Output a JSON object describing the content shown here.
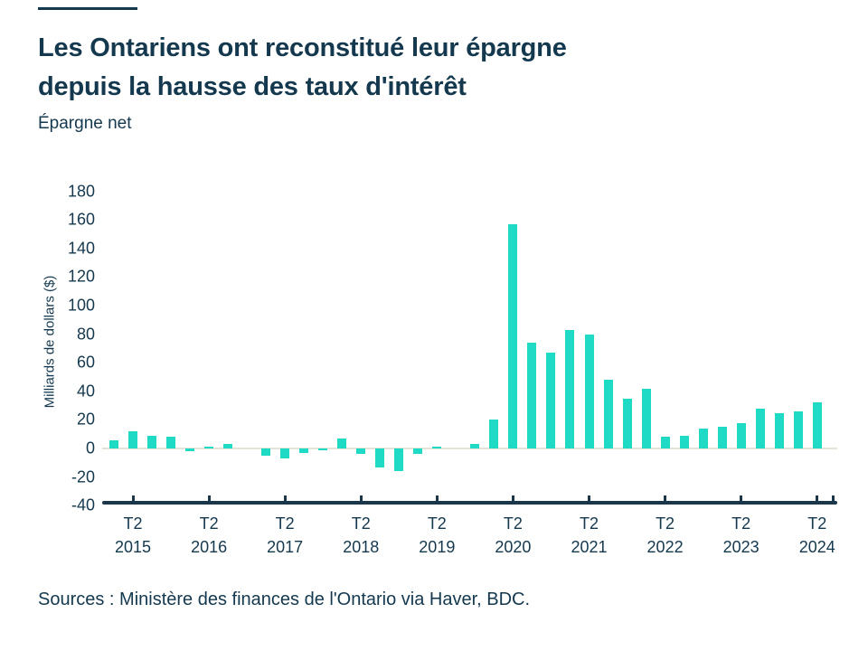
{
  "colors": {
    "text": "#14384E",
    "bar": "#1FDBC6",
    "zero_line": "#E6E1D8",
    "axis": "#1B3648"
  },
  "header": {
    "title_line1": "Les Ontariens ont reconstitué leur épargne",
    "title_line2": "depuis la hausse des taux d'intérêt",
    "subtitle": "Épargne net"
  },
  "source": "Sources : Ministère des finances de l'Ontario via Haver, BDC.",
  "chart_data": {
    "type": "bar",
    "title": "Épargne net",
    "xlabel": "",
    "ylabel": "Milliards de dollars ($)",
    "ylim": [
      -40,
      180
    ],
    "yticks": [
      180,
      160,
      140,
      120,
      100,
      80,
      60,
      40,
      20,
      0,
      -20,
      -40
    ],
    "grid": false,
    "legend": false,
    "bar_color": "#1FDBC6",
    "categories": [
      "T1 2015",
      "T2 2015",
      "T3 2015",
      "T4 2015",
      "T1 2016",
      "T2 2016",
      "T3 2016",
      "T4 2016",
      "T1 2017",
      "T2 2017",
      "T3 2017",
      "T4 2017",
      "T1 2018",
      "T2 2018",
      "T3 2018",
      "T4 2018",
      "T1 2019",
      "T2 2019",
      "T3 2019",
      "T4 2019",
      "T1 2020",
      "T2 2020",
      "T3 2020",
      "T4 2020",
      "T1 2021",
      "T2 2021",
      "T3 2021",
      "T4 2021",
      "T1 2022",
      "T2 2022",
      "T3 2022",
      "T4 2022",
      "T1 2023",
      "T2 2023",
      "T3 2023",
      "T4 2023",
      "T1 2024",
      "T2 2024"
    ],
    "values": [
      6,
      12,
      9,
      8,
      -2,
      1,
      3,
      0,
      -5,
      -7,
      -3,
      -1,
      7,
      -4,
      -13,
      -16,
      -4,
      1,
      0,
      3,
      20,
      157,
      74,
      67,
      83,
      80,
      48,
      35,
      42,
      8,
      9,
      14,
      15,
      18,
      28,
      25,
      26,
      32
    ],
    "xticks": [
      {
        "line1": "T2",
        "line2": "2015",
        "index": 1
      },
      {
        "line1": "T2",
        "line2": "2016",
        "index": 5
      },
      {
        "line1": "T2",
        "line2": "2017",
        "index": 9
      },
      {
        "line1": "T2",
        "line2": "2018",
        "index": 13
      },
      {
        "line1": "T2",
        "line2": "2019",
        "index": 17
      },
      {
        "line1": "T2",
        "line2": "2020",
        "index": 21
      },
      {
        "line1": "T2",
        "line2": "2021",
        "index": 25
      },
      {
        "line1": "T2",
        "line2": "2022",
        "index": 29
      },
      {
        "line1": "T2",
        "line2": "2023",
        "index": 33
      },
      {
        "line1": "T2",
        "line2": "2024",
        "index": 37
      }
    ]
  }
}
